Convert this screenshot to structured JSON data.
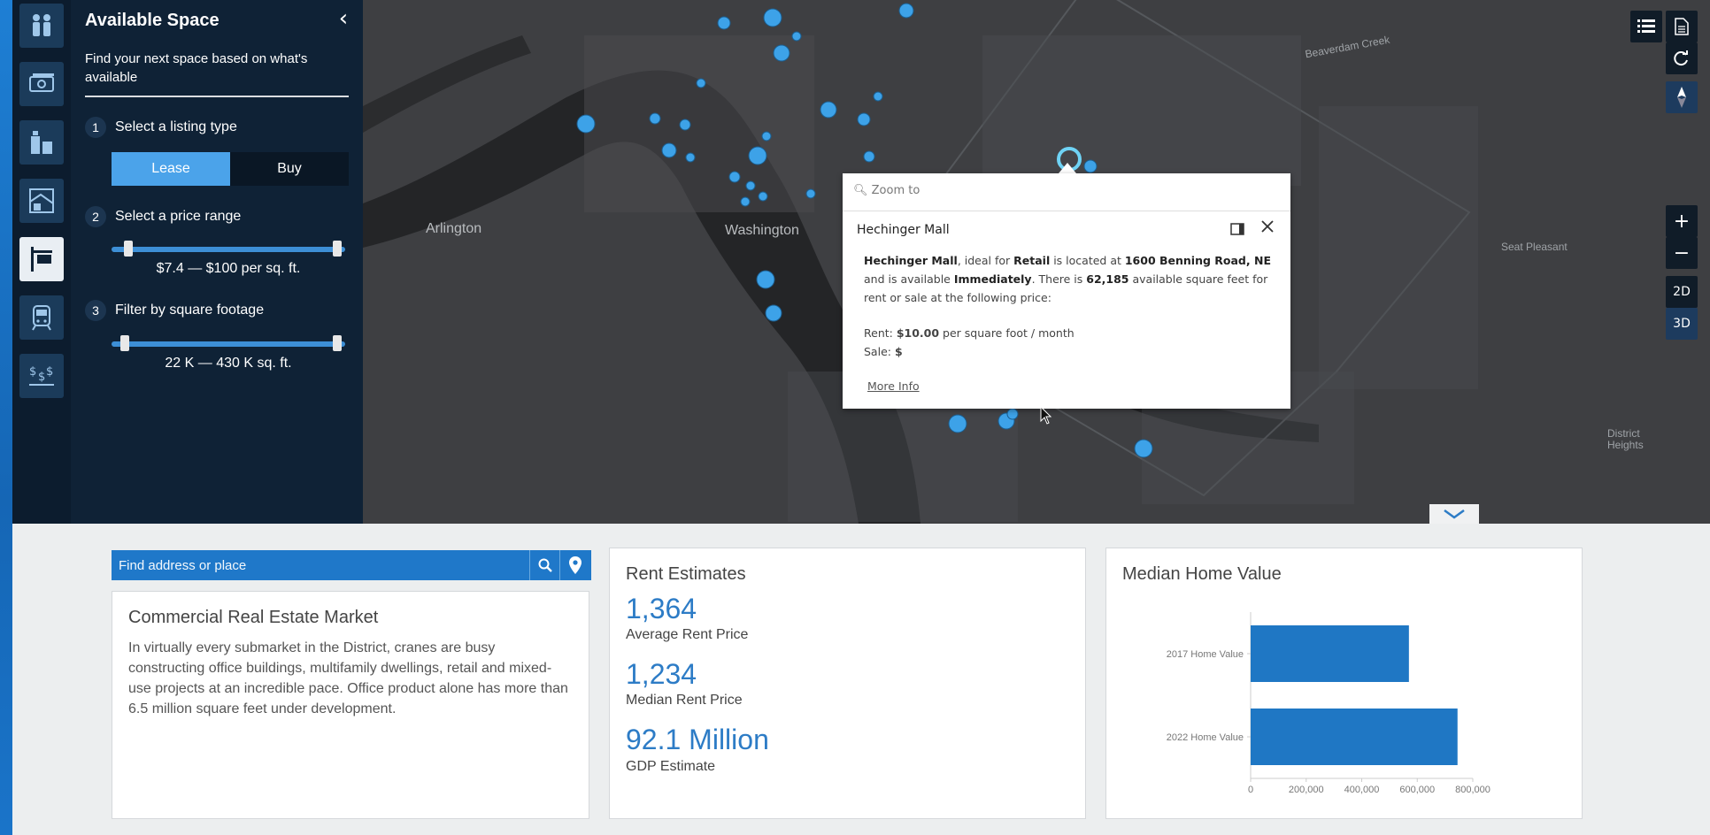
{
  "panel": {
    "title": "Available Space",
    "subtitle": "Find your next space based on what's available",
    "steps": [
      {
        "num": "1",
        "label": "Select a listing type"
      },
      {
        "num": "2",
        "label": "Select a price range"
      },
      {
        "num": "3",
        "label": "Filter by square footage"
      }
    ],
    "listing_types": {
      "lease": "Lease",
      "buy": "Buy",
      "selected": "Lease"
    },
    "price_range": "$7.4 — $100 per sq. ft.",
    "sqft_range": "22 K — 430 K sq. ft."
  },
  "rail_icons": [
    "people-icon",
    "money-icon",
    "buildings-icon",
    "map-layers-icon",
    "for-rent-sign-icon",
    "transit-icon",
    "dollar-chart-icon"
  ],
  "map": {
    "labels": [
      "Arlington",
      "Washington",
      "Seat Pleasant",
      "District Heights",
      "Beaverdam Creek"
    ],
    "view_modes": [
      "2D",
      "3D"
    ],
    "active_view": "3D",
    "zoom_in": "+",
    "zoom_out": "−"
  },
  "popup": {
    "zoom_to": "Zoom to",
    "title": "Hechinger Mall",
    "name": "Hechinger Mall",
    "t1": ", ideal for ",
    "use": "Retail",
    "t2": " is located at ",
    "address": "1600 Benning Road, NE",
    "t3": " and is available ",
    "availability": "Immediately",
    "t4": ". There is ",
    "sqft": "62,185",
    "t5": " available square feet for rent or sale at the following price:",
    "rent_label": "Rent: ",
    "rent_value": "$10.00",
    "rent_unit": " per square foot / month",
    "sale_label": "Sale: ",
    "sale_value": "$",
    "more_info": "More Info"
  },
  "search": {
    "placeholder": "Find address or place"
  },
  "cre": {
    "title": "Commercial Real Estate Market",
    "text": "In virtually every submarket in the District, cranes are busy constructing office buildings, multifamily dwellings, retail and mixed-use projects at an incredible pace. Office product alone has more than 6.5 million square feet under development."
  },
  "rent": {
    "title": "Rent Estimates",
    "stats": [
      {
        "value": "1,364",
        "label": "Average Rent Price"
      },
      {
        "value": "1,234",
        "label": "Median Rent Price"
      },
      {
        "value": "92.1 Million",
        "label": "GDP Estimate"
      }
    ]
  },
  "home": {
    "title": "Median Home Value"
  },
  "chart_data": {
    "type": "bar",
    "orientation": "horizontal",
    "categories": [
      "2017 Home Value",
      "2022 Home Value"
    ],
    "values": [
      570000,
      745000
    ],
    "xlim": [
      0,
      800000
    ],
    "xticks": [
      "0",
      "200,000",
      "400,000",
      "600,000",
      "800,000"
    ],
    "color": "#1f77c4",
    "title": "",
    "xlabel": "",
    "ylabel": ""
  },
  "colors": {
    "accent": "#4ba3ea",
    "panel": "#0f2236",
    "map": "#3c3d40",
    "marker": "#3da2e8"
  }
}
